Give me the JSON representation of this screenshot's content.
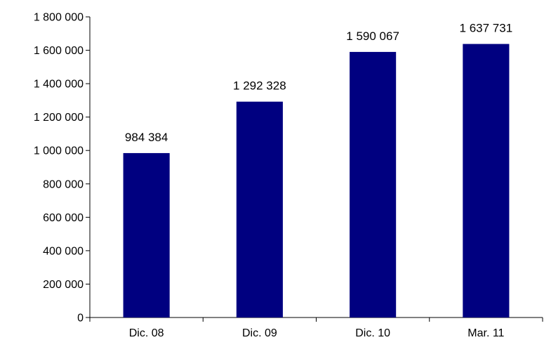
{
  "chart_data": {
    "type": "bar",
    "categories": [
      "Dic. 08",
      "Dic. 09",
      "Dic. 10",
      "Mar. 11"
    ],
    "values": [
      984384,
      1292328,
      1590067,
      1637731
    ],
    "value_labels": [
      "984 384",
      "1 292 328",
      "1 590 067",
      "1 637 731"
    ],
    "title": "",
    "xlabel": "",
    "ylabel": "",
    "ylim": [
      0,
      1800000
    ],
    "yticks": [
      0,
      200000,
      400000,
      600000,
      800000,
      1000000,
      1200000,
      1400000,
      1600000,
      1800000
    ],
    "ytick_labels": [
      "0",
      "200 000",
      "400 000",
      "600 000",
      "800 000",
      "1 000 000",
      "1 200 000",
      "1 400 000",
      "1 600 000",
      "1 800 000"
    ],
    "grid": false,
    "legend": "none",
    "bar_color": "#000080"
  }
}
